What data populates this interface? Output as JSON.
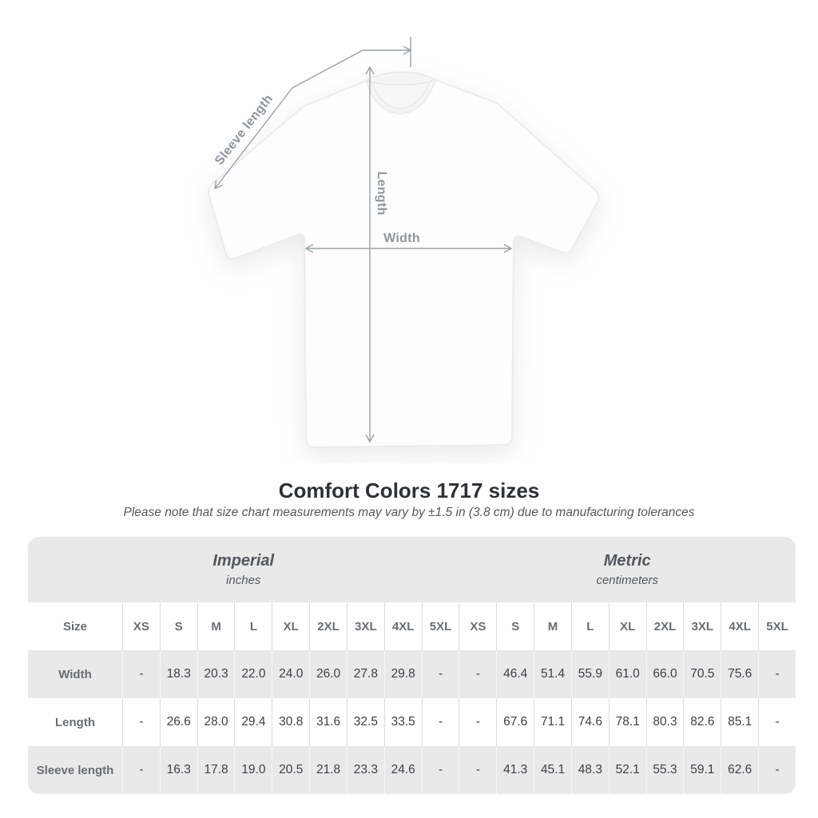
{
  "diagram": {
    "labels": {
      "sleeve_length": "Sleeve length",
      "length": "Length",
      "width": "Width"
    }
  },
  "heading": {
    "title": "Comfort Colors 1717 sizes",
    "note": "Please note that size chart measurements may vary by ±1.5 in (3.8 cm) due to manufacturing tolerances"
  },
  "chart_data": {
    "type": "table",
    "title": "Comfort Colors 1717 sizes",
    "corner_label": "Size",
    "unit_groups": [
      {
        "label": "Imperial",
        "sublabel": "inches"
      },
      {
        "label": "Metric",
        "sublabel": "centimeters"
      }
    ],
    "sizes": [
      "XS",
      "S",
      "M",
      "L",
      "XL",
      "2XL",
      "3XL",
      "4XL",
      "5XL"
    ],
    "rows": [
      {
        "label": "Width",
        "imperial": [
          "-",
          "18.3",
          "20.3",
          "22.0",
          "24.0",
          "26.0",
          "27.8",
          "29.8",
          "-"
        ],
        "metric": [
          "-",
          "46.4",
          "51.4",
          "55.9",
          "61.0",
          "66.0",
          "70.5",
          "75.6",
          "-"
        ]
      },
      {
        "label": "Length",
        "imperial": [
          "-",
          "26.6",
          "28.0",
          "29.4",
          "30.8",
          "31.6",
          "32.5",
          "33.5",
          "-"
        ],
        "metric": [
          "-",
          "67.6",
          "71.1",
          "74.6",
          "78.1",
          "80.3",
          "82.6",
          "85.1",
          "-"
        ]
      },
      {
        "label": "Sleeve length",
        "imperial": [
          "-",
          "16.3",
          "17.8",
          "19.0",
          "20.5",
          "21.8",
          "23.3",
          "24.6",
          "-"
        ],
        "metric": [
          "-",
          "41.3",
          "45.1",
          "48.3",
          "52.1",
          "55.3",
          "59.1",
          "62.6",
          "-"
        ]
      }
    ]
  },
  "colors": {
    "band_bg": "#e9e9e9",
    "row_alt_bg": "#e9e9e9",
    "separator_on_white": "#dcdcdc",
    "separator_on_gray": "#f7f7f7",
    "label_text": "#696d72",
    "value_text": "#3e4043",
    "annotation_gray": "#8f959b",
    "title_text": "#2d3035"
  }
}
